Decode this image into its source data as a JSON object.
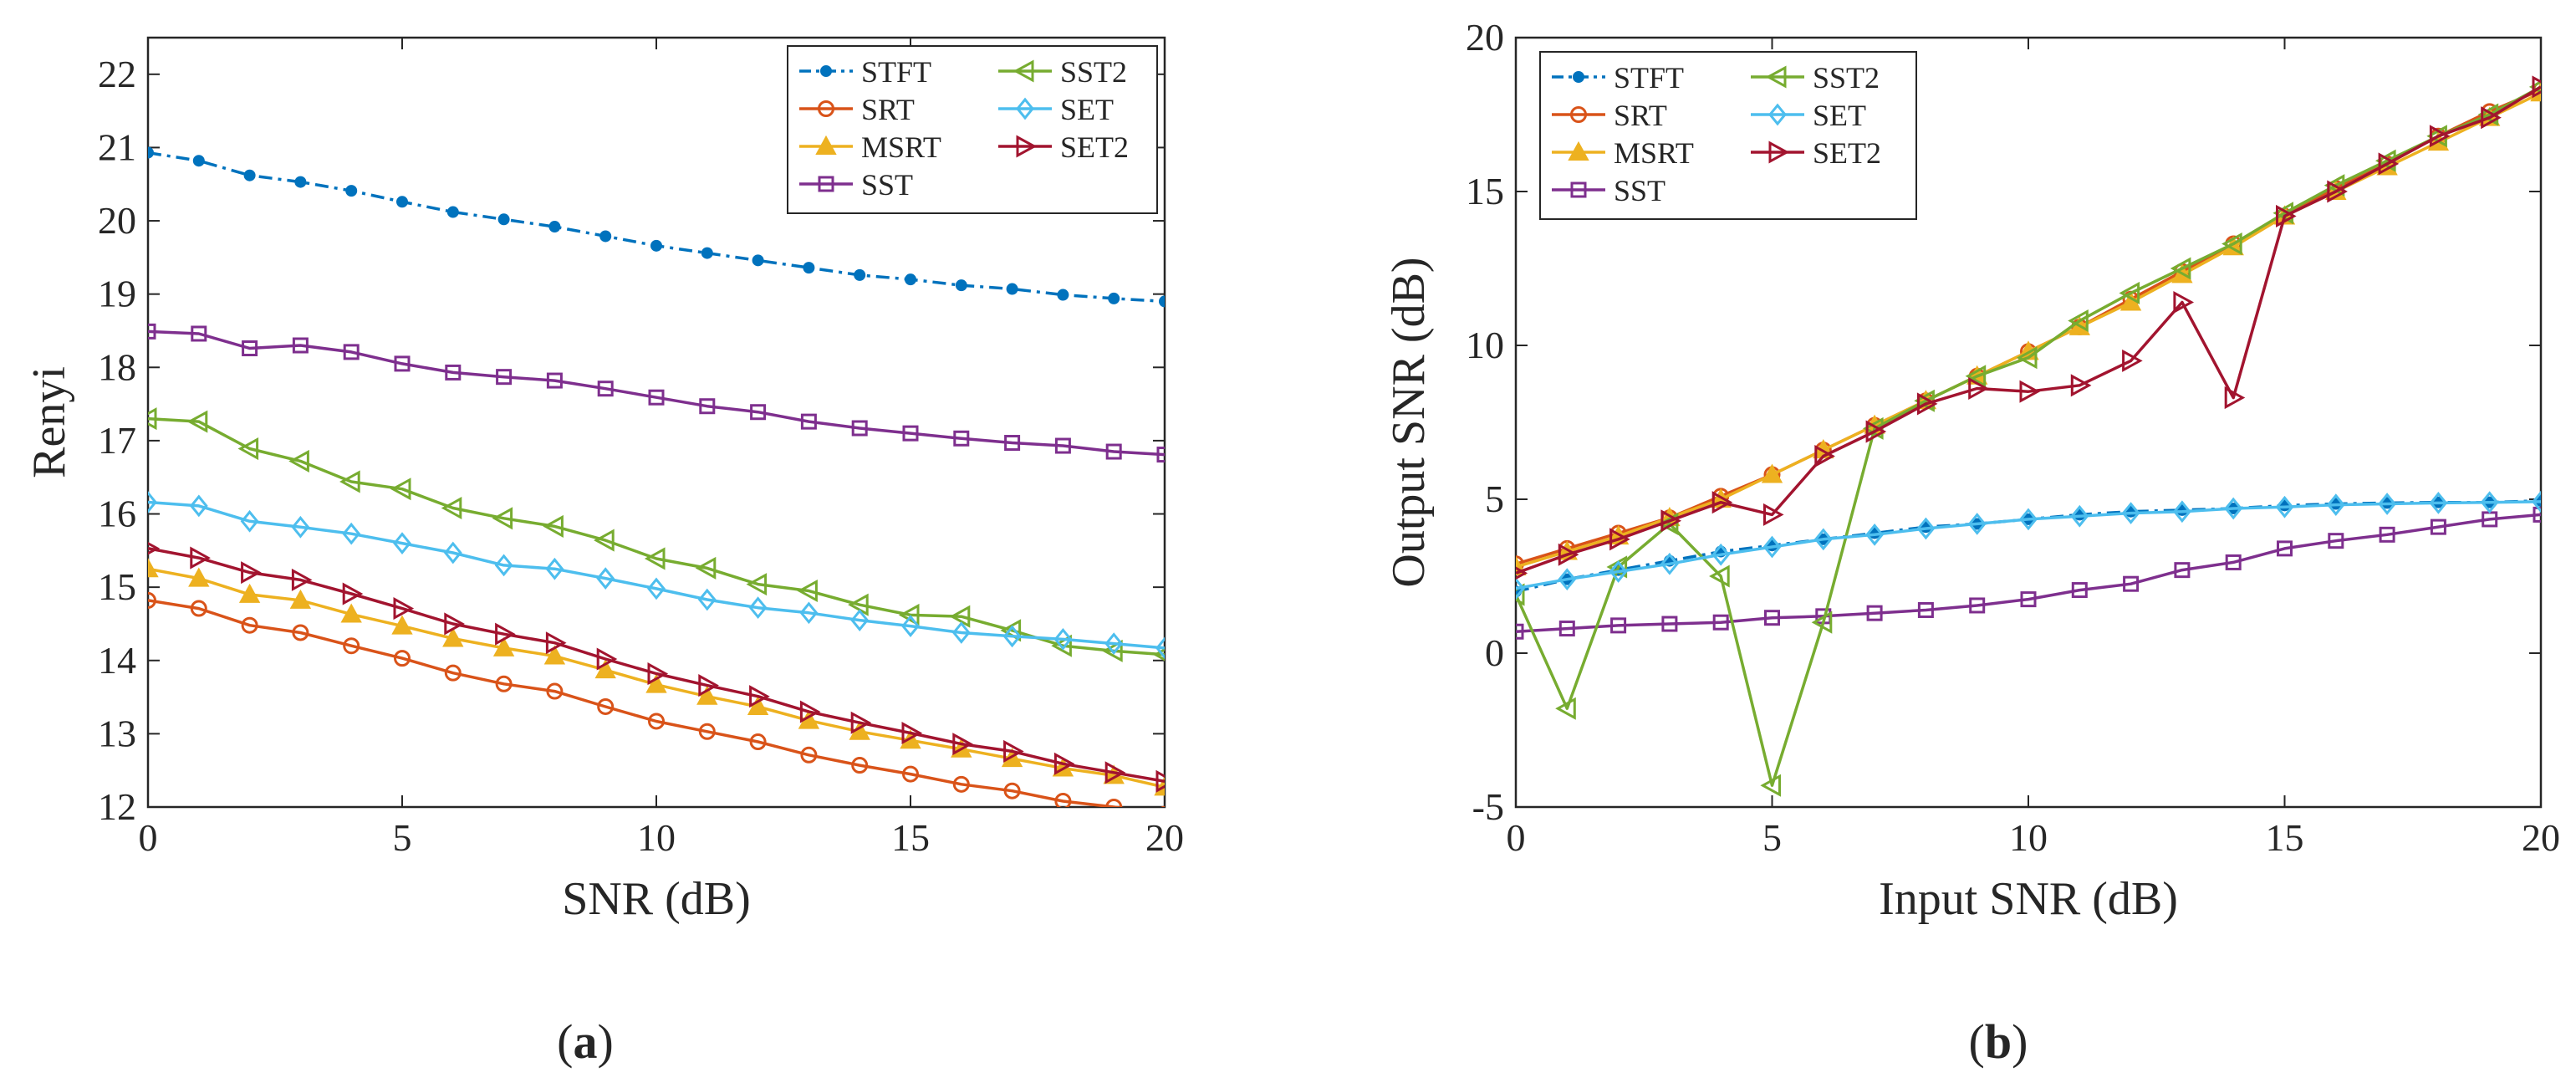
{
  "colors": {
    "STFT": "#0072BD",
    "SRT": "#D95319",
    "MSRT": "#EDB120",
    "SST": "#7E2F8E",
    "SST2": "#77AC30",
    "SET": "#4DBEEE",
    "SET2": "#A2142F"
  },
  "captions": {
    "a_open": "(",
    "a_letter": "a",
    "a_close": ")",
    "b_open": "(",
    "b_letter": "b",
    "b_close": ")"
  },
  "chart_data": [
    {
      "id": "a",
      "type": "line",
      "title": "",
      "xlabel": "SNR (dB)",
      "ylabel": "Renyi",
      "xlim": [
        0,
        20
      ],
      "ylim": [
        12,
        22.5
      ],
      "xticks": [
        0,
        5,
        10,
        15,
        20
      ],
      "yticks": [
        12,
        13,
        14,
        15,
        16,
        17,
        18,
        19,
        20,
        21,
        22
      ],
      "grid": false,
      "legend_position": "top-right",
      "x": [
        0,
        1,
        2,
        3,
        4,
        5,
        6,
        7,
        8,
        9,
        10,
        11,
        12,
        13,
        14,
        15,
        16,
        17,
        18,
        19,
        20
      ],
      "series": [
        {
          "name": "STFT",
          "marker": "dot",
          "dash": true,
          "values": [
            20.93,
            20.82,
            20.62,
            20.53,
            20.41,
            20.26,
            20.12,
            20.02,
            19.92,
            19.79,
            19.66,
            19.56,
            19.46,
            19.36,
            19.26,
            19.2,
            19.12,
            19.07,
            18.99,
            18.94,
            18.9
          ]
        },
        {
          "name": "SRT",
          "marker": "circle",
          "values": [
            14.82,
            14.71,
            14.48,
            14.38,
            14.2,
            14.03,
            13.83,
            13.68,
            13.58,
            13.37,
            13.17,
            13.03,
            12.89,
            12.71,
            12.57,
            12.45,
            12.31,
            12.22,
            12.08,
            12.0,
            11.9
          ]
        },
        {
          "name": "MSRT",
          "marker": "triangle-up",
          "values": [
            15.25,
            15.12,
            14.9,
            14.82,
            14.63,
            14.47,
            14.3,
            14.17,
            14.06,
            13.87,
            13.67,
            13.51,
            13.37,
            13.18,
            13.03,
            12.91,
            12.79,
            12.66,
            12.53,
            12.43,
            12.27
          ]
        },
        {
          "name": "SST",
          "marker": "square",
          "values": [
            18.49,
            18.46,
            18.26,
            18.3,
            18.21,
            18.05,
            17.93,
            17.87,
            17.82,
            17.71,
            17.59,
            17.47,
            17.39,
            17.26,
            17.17,
            17.1,
            17.03,
            16.97,
            16.93,
            16.85,
            16.81
          ]
        },
        {
          "name": "SST2",
          "marker": "triangle-left",
          "values": [
            17.3,
            17.26,
            16.89,
            16.72,
            16.44,
            16.34,
            16.08,
            15.94,
            15.83,
            15.64,
            15.39,
            15.26,
            15.04,
            14.95,
            14.76,
            14.62,
            14.6,
            14.41,
            14.2,
            14.13,
            14.08
          ]
        },
        {
          "name": "SET",
          "marker": "diamond",
          "values": [
            16.16,
            16.11,
            15.9,
            15.82,
            15.73,
            15.6,
            15.47,
            15.3,
            15.25,
            15.12,
            14.98,
            14.83,
            14.72,
            14.65,
            14.55,
            14.47,
            14.38,
            14.33,
            14.29,
            14.23,
            14.17
          ]
        },
        {
          "name": "SET2",
          "marker": "triangle-right",
          "values": [
            15.53,
            15.4,
            15.2,
            15.1,
            14.91,
            14.71,
            14.5,
            14.36,
            14.24,
            14.02,
            13.82,
            13.66,
            13.51,
            13.3,
            13.15,
            13.01,
            12.86,
            12.76,
            12.59,
            12.47,
            12.35
          ]
        }
      ]
    },
    {
      "id": "b",
      "type": "line",
      "title": "",
      "xlabel": "Input SNR (dB)",
      "ylabel": "Output SNR (dB)",
      "xlim": [
        0,
        20
      ],
      "ylim": [
        -5,
        20
      ],
      "xticks": [
        0,
        5,
        10,
        15,
        20
      ],
      "yticks": [
        -5,
        0,
        5,
        10,
        15,
        20
      ],
      "grid": false,
      "legend_position": "top-left",
      "x": [
        0,
        1,
        2,
        3,
        4,
        5,
        6,
        7,
        8,
        9,
        10,
        11,
        12,
        13,
        14,
        15,
        16,
        17,
        18,
        19,
        20
      ],
      "series": [
        {
          "name": "STFT",
          "marker": "dot",
          "dash": true,
          "values": [
            2.0,
            2.4,
            2.7,
            3.0,
            3.3,
            3.5,
            3.7,
            3.9,
            4.1,
            4.2,
            4.35,
            4.5,
            4.6,
            4.65,
            4.7,
            4.8,
            4.85,
            4.88,
            4.9,
            4.9,
            4.95
          ]
        },
        {
          "name": "SRT",
          "marker": "circle",
          "values": [
            2.9,
            3.4,
            3.9,
            4.4,
            5.1,
            5.8,
            6.6,
            7.4,
            8.2,
            9.0,
            9.8,
            10.6,
            11.5,
            12.4,
            13.3,
            14.2,
            15.1,
            15.9,
            16.8,
            17.6,
            18.3
          ]
        },
        {
          "name": "MSRT",
          "marker": "triangle-up",
          "values": [
            2.8,
            3.3,
            3.8,
            4.4,
            5.0,
            5.8,
            6.6,
            7.4,
            8.2,
            9.0,
            9.8,
            10.6,
            11.4,
            12.3,
            13.2,
            14.2,
            15.0,
            15.8,
            16.6,
            17.4,
            18.2
          ]
        },
        {
          "name": "SST",
          "marker": "square",
          "values": [
            0.7,
            0.8,
            0.9,
            0.95,
            1.0,
            1.15,
            1.2,
            1.3,
            1.4,
            1.55,
            1.75,
            2.05,
            2.25,
            2.7,
            2.95,
            3.4,
            3.65,
            3.85,
            4.1,
            4.35,
            4.5
          ]
        },
        {
          "name": "SST2",
          "marker": "triangle-left",
          "values": [
            1.9,
            -1.8,
            2.8,
            4.2,
            2.5,
            -4.3,
            1.0,
            7.3,
            8.2,
            9.0,
            9.6,
            10.8,
            11.7,
            12.5,
            13.3,
            14.3,
            15.2,
            16.0,
            16.8,
            17.5,
            18.4
          ]
        },
        {
          "name": "SET",
          "marker": "diamond",
          "values": [
            2.1,
            2.4,
            2.65,
            2.9,
            3.2,
            3.45,
            3.7,
            3.85,
            4.05,
            4.2,
            4.35,
            4.45,
            4.55,
            4.6,
            4.7,
            4.75,
            4.82,
            4.85,
            4.88,
            4.9,
            4.92
          ]
        },
        {
          "name": "SET2",
          "marker": "triangle-right",
          "values": [
            2.6,
            3.2,
            3.7,
            4.3,
            4.9,
            4.5,
            6.4,
            7.2,
            8.1,
            8.6,
            8.5,
            8.7,
            9.5,
            11.4,
            8.3,
            14.2,
            15.0,
            15.9,
            16.8,
            17.4,
            18.4
          ]
        }
      ]
    }
  ]
}
